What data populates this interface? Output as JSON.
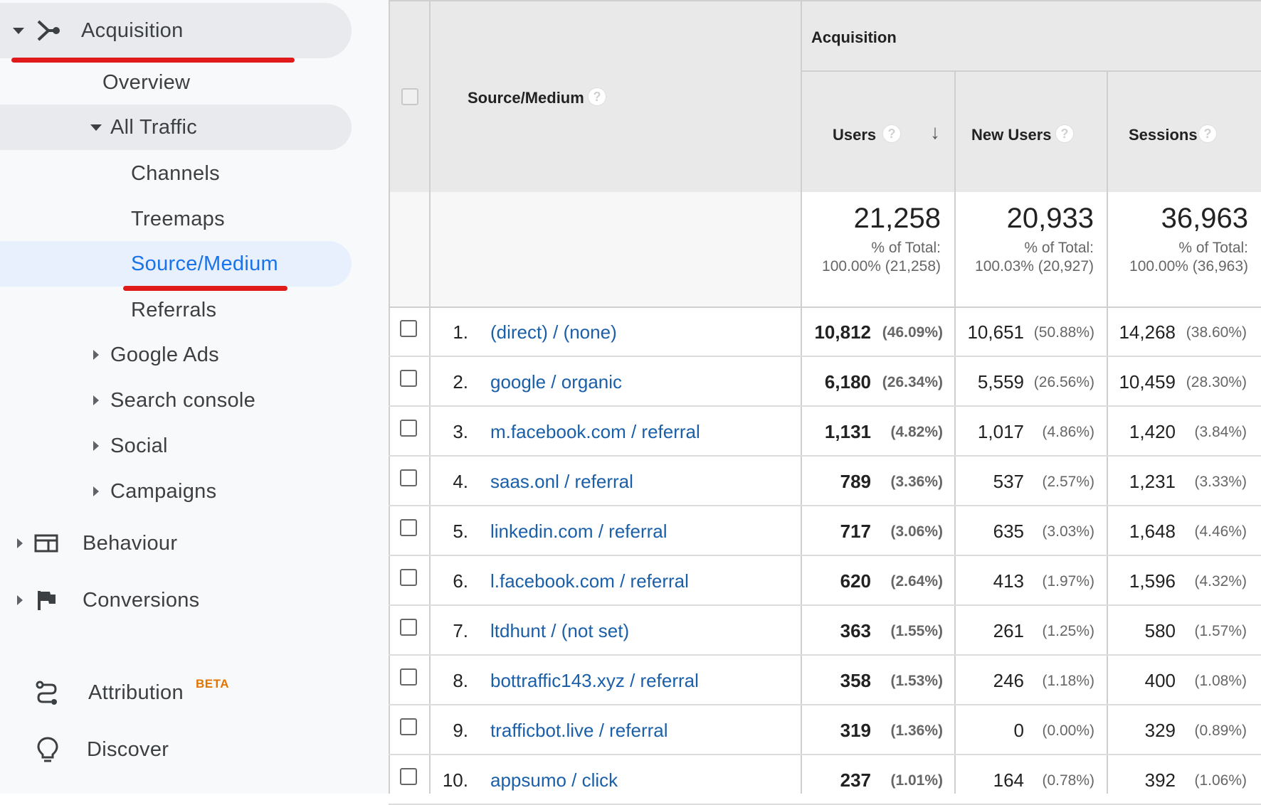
{
  "sidebar": {
    "acquisition": "Acquisition",
    "overview": "Overview",
    "all_traffic": "All Traffic",
    "channels": "Channels",
    "treemaps": "Treemaps",
    "source_medium": "Source/Medium",
    "referrals": "Referrals",
    "google_ads": "Google Ads",
    "search_console": "Search console",
    "social": "Social",
    "campaigns": "Campaigns",
    "behaviour": "Behaviour",
    "conversions": "Conversions",
    "attribution": "Attribution",
    "attribution_badge": "BETA",
    "discover": "Discover",
    "colors": {
      "active": "#1a73e8",
      "underline": "#e01a1a",
      "beta": "#e37400"
    }
  },
  "table": {
    "group_header": "Acquisition",
    "dimension_header": "Source/Medium",
    "columns": [
      "Users",
      "New Users",
      "Sessions"
    ],
    "sorted_column": "Users",
    "help_glyph": "?",
    "sort_glyph": "↓",
    "totals": [
      {
        "value": "21,258",
        "label": "% of Total:",
        "detail": "100.00% (21,258)"
      },
      {
        "value": "20,933",
        "label": "% of Total:",
        "detail": "100.03% (20,927)"
      },
      {
        "value": "36,963",
        "label": "% of Total:",
        "detail": "100.00% (36,963)"
      }
    ],
    "rows": [
      {
        "index": "1.",
        "source": "(direct) / (none)",
        "users": "10,812",
        "users_pct": "(46.09%)",
        "new_users": "10,651",
        "new_users_pct": "(50.88%)",
        "sessions": "14,268",
        "sessions_pct": "(38.60%)"
      },
      {
        "index": "2.",
        "source": "google / organic",
        "users": "6,180",
        "users_pct": "(26.34%)",
        "new_users": "5,559",
        "new_users_pct": "(26.56%)",
        "sessions": "10,459",
        "sessions_pct": "(28.30%)"
      },
      {
        "index": "3.",
        "source": "m.facebook.com / referral",
        "users": "1,131",
        "users_pct": "(4.82%)",
        "new_users": "1,017",
        "new_users_pct": "(4.86%)",
        "sessions": "1,420",
        "sessions_pct": "(3.84%)"
      },
      {
        "index": "4.",
        "source": "saas.onl / referral",
        "users": "789",
        "users_pct": "(3.36%)",
        "new_users": "537",
        "new_users_pct": "(2.57%)",
        "sessions": "1,231",
        "sessions_pct": "(3.33%)"
      },
      {
        "index": "5.",
        "source": "linkedin.com / referral",
        "users": "717",
        "users_pct": "(3.06%)",
        "new_users": "635",
        "new_users_pct": "(3.03%)",
        "sessions": "1,648",
        "sessions_pct": "(4.46%)"
      },
      {
        "index": "6.",
        "source": "l.facebook.com / referral",
        "users": "620",
        "users_pct": "(2.64%)",
        "new_users": "413",
        "new_users_pct": "(1.97%)",
        "sessions": "1,596",
        "sessions_pct": "(4.32%)"
      },
      {
        "index": "7.",
        "source": "ltdhunt / (not set)",
        "users": "363",
        "users_pct": "(1.55%)",
        "new_users": "261",
        "new_users_pct": "(1.25%)",
        "sessions": "580",
        "sessions_pct": "(1.57%)"
      },
      {
        "index": "8.",
        "source": "bottraffic143.xyz / referral",
        "users": "358",
        "users_pct": "(1.53%)",
        "new_users": "246",
        "new_users_pct": "(1.18%)",
        "sessions": "400",
        "sessions_pct": "(1.08%)"
      },
      {
        "index": "9.",
        "source": "trafficbot.live / referral",
        "users": "319",
        "users_pct": "(1.36%)",
        "new_users": "0",
        "new_users_pct": "(0.00%)",
        "sessions": "329",
        "sessions_pct": "(0.89%)"
      },
      {
        "index": "10.",
        "source": "appsumo / click",
        "users": "237",
        "users_pct": "(1.01%)",
        "new_users": "164",
        "new_users_pct": "(0.78%)",
        "sessions": "392",
        "sessions_pct": "(1.06%)"
      }
    ]
  }
}
